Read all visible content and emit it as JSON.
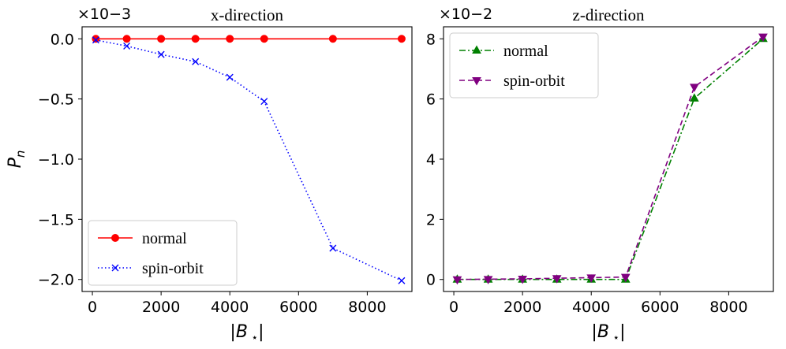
{
  "chart_data": [
    {
      "type": "line",
      "title": "x-direction",
      "xlabel": "|B_⋆|",
      "ylabel": "P_n",
      "offset_text": "×10−3",
      "xlim": [
        -300,
        9300
      ],
      "ylim": [
        -2.1,
        0.1
      ],
      "xticks": [
        0,
        2000,
        4000,
        6000,
        8000
      ],
      "xtick_labels": [
        "0",
        "2000",
        "4000",
        "6000",
        "8000"
      ],
      "yticks": [
        0.0,
        -0.5,
        -1.0,
        -1.5,
        -2.0
      ],
      "ytick_labels": [
        "0.0",
        "−0.5",
        "−1.0",
        "−1.5",
        "−2.0"
      ],
      "legend": "bottom-left",
      "series": [
        {
          "name": "normal",
          "color": "#ff0000",
          "linestyle": "solid",
          "marker": "circle",
          "x": [
            100,
            1000,
            2000,
            3000,
            4000,
            5000,
            7000,
            9000
          ],
          "y": [
            0.0,
            0.0,
            0.0,
            0.0,
            0.0,
            0.0,
            0.0,
            0.0
          ]
        },
        {
          "name": "spin-orbit",
          "color": "#0000ff",
          "linestyle": "dotted",
          "marker": "x",
          "x": [
            100,
            1000,
            2000,
            3000,
            4000,
            5000,
            7000,
            9000
          ],
          "y": [
            -0.01,
            -0.06,
            -0.13,
            -0.19,
            -0.32,
            -0.52,
            -1.74,
            -2.01
          ]
        }
      ]
    },
    {
      "type": "line",
      "title": "z-direction",
      "xlabel": "|B_⋆|",
      "ylabel": "",
      "offset_text": "×10−2",
      "xlim": [
        -300,
        9300
      ],
      "ylim": [
        -0.4,
        8.4
      ],
      "xticks": [
        0,
        2000,
        4000,
        6000,
        8000
      ],
      "xtick_labels": [
        "0",
        "2000",
        "4000",
        "6000",
        "8000"
      ],
      "yticks": [
        0,
        2,
        4,
        6,
        8
      ],
      "ytick_labels": [
        "0",
        "2",
        "4",
        "6",
        "8"
      ],
      "legend": "top-left",
      "series": [
        {
          "name": "normal",
          "color": "#008000",
          "linestyle": "dashdot",
          "marker": "triangle-up",
          "x": [
            100,
            1000,
            2000,
            3000,
            4000,
            5000,
            7000,
            9000
          ],
          "y": [
            0.0,
            0.0,
            0.0,
            0.0,
            0.0,
            0.0,
            6.02,
            8.0
          ]
        },
        {
          "name": "spin-orbit",
          "color": "#800080",
          "linestyle": "dashed",
          "marker": "triangle-down",
          "x": [
            100,
            1000,
            2000,
            3000,
            4000,
            5000,
            7000,
            9000
          ],
          "y": [
            0.0,
            0.01,
            0.02,
            0.04,
            0.06,
            0.08,
            6.4,
            8.07
          ]
        }
      ]
    }
  ]
}
